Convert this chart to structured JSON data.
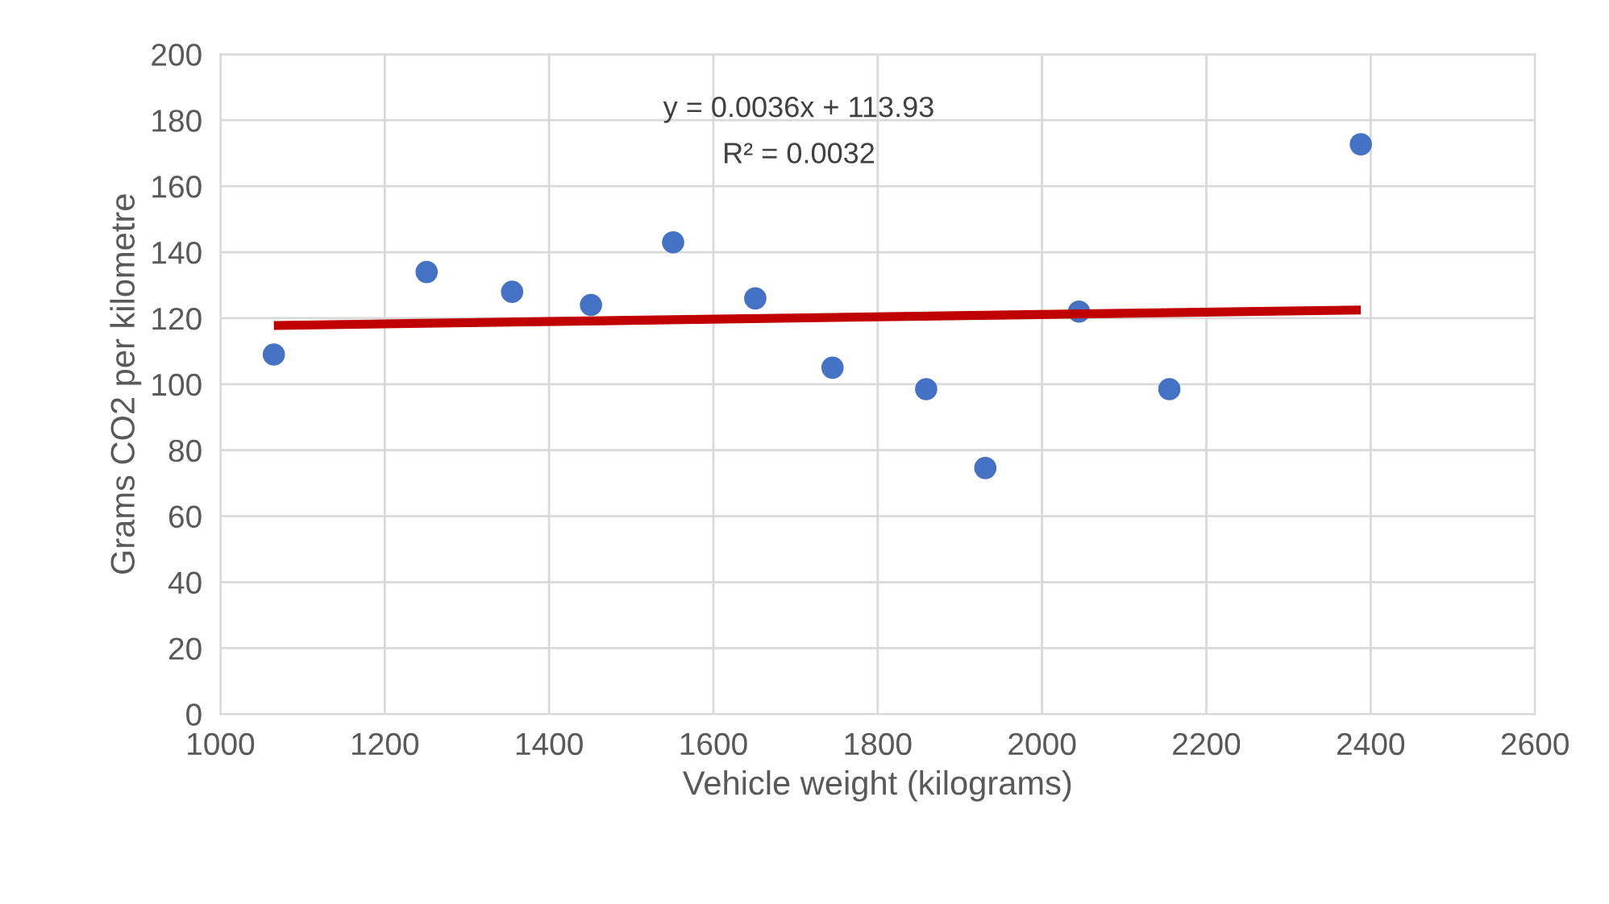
{
  "chart_data": {
    "type": "scatter",
    "xlabel": "Vehicle weight (kilograms)",
    "ylabel": "Grams CO2 per kilometre",
    "series": [
      {
        "color": "#4472c4",
        "marker": "circle",
        "x": [
          1065,
          1251,
          1355,
          1451,
          1551,
          1651,
          1745,
          1859,
          1931,
          2045,
          2155,
          2388
        ],
        "values": [
          109,
          134,
          128,
          124,
          143,
          126,
          105,
          98.5,
          74.6,
          122,
          98.5,
          172.7
        ]
      },
      {
        "type": "line",
        "color": "#c00000",
        "x": [
          1065,
          2388
        ],
        "values": [
          117.8,
          122.5
        ]
      }
    ],
    "annotations": [
      "y = 0.0036x + 113.93",
      "R² = 0.0032"
    ],
    "xlim": [
      1000,
      2600
    ],
    "xticks": [
      1000,
      1200,
      1400,
      1600,
      1800,
      2000,
      2200,
      2400,
      2600
    ],
    "ylim": [
      0,
      200
    ],
    "yticks": [
      0,
      20,
      40,
      60,
      80,
      100,
      120,
      140,
      160,
      180,
      200
    ],
    "grid": true
  }
}
